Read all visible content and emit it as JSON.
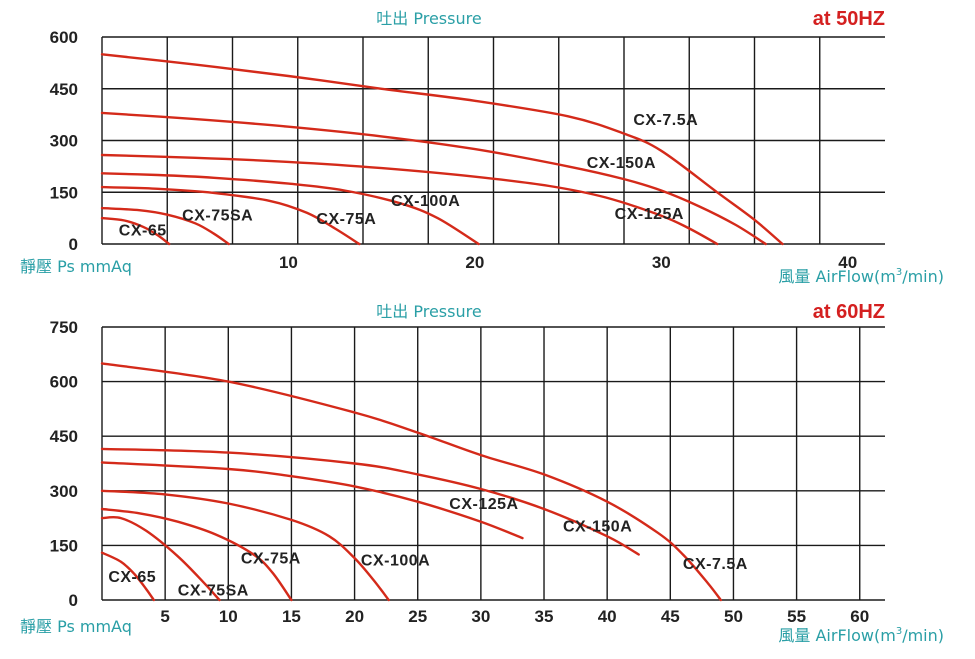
{
  "chart_data": [
    {
      "type": "line",
      "title": "吐出 Pressure",
      "frequency": "at 50HZ",
      "ylabel": "靜壓 Ps mmAq",
      "xlabel_main": "風量 AirFlow(m",
      "xlabel_sup": "3",
      "xlabel_tail": "/min)",
      "xlim": [
        0,
        42
      ],
      "ylim": [
        0,
        600
      ],
      "y_ticks": [
        0,
        150,
        300,
        450,
        600
      ],
      "x_ticks": [
        10,
        20,
        30,
        40
      ],
      "x_grid": [
        3.5,
        7,
        10.5,
        14,
        17.5,
        21,
        24.5,
        28,
        31.5,
        35,
        38.5
      ],
      "grid": true,
      "color": "#d42a1a",
      "series": [
        {
          "name": "CX-7.5A",
          "x": [
            0,
            5,
            10,
            15,
            20,
            25,
            28,
            30,
            33,
            35,
            36.5
          ],
          "y": [
            550,
            520,
            487,
            450,
            415,
            370,
            320,
            270,
            150,
            70,
            0
          ]
        },
        {
          "name": "CX-150A",
          "x": [
            0,
            5,
            10,
            15,
            20,
            25,
            28,
            30,
            32,
            34,
            35.6
          ],
          "y": [
            380,
            362,
            340,
            312,
            275,
            225,
            188,
            155,
            110,
            55,
            0
          ]
        },
        {
          "name": "CX-125A",
          "x": [
            0,
            5,
            10,
            15,
            20,
            24,
            27,
            30,
            31.5,
            33
          ],
          "y": [
            258,
            250,
            238,
            220,
            195,
            168,
            135,
            82,
            45,
            0
          ]
        },
        {
          "name": "CX-100A",
          "x": [
            0,
            3,
            6,
            10,
            13,
            16,
            18,
            20.2
          ],
          "y": [
            205,
            200,
            192,
            175,
            155,
            118,
            75,
            0
          ]
        },
        {
          "name": "CX-75A",
          "x": [
            0,
            3,
            6,
            9,
            11,
            12.5,
            13.8
          ],
          "y": [
            165,
            160,
            148,
            125,
            90,
            45,
            0
          ]
        },
        {
          "name": "CX-75SA",
          "x": [
            0,
            2,
            3.5,
            5,
            6,
            6.8
          ],
          "y": [
            104,
            98,
            85,
            60,
            30,
            0
          ]
        },
        {
          "name": "CX-65",
          "x": [
            0,
            1.2,
            2.2,
            3,
            3.6
          ],
          "y": [
            75,
            68,
            50,
            25,
            0
          ]
        }
      ],
      "labels": [
        {
          "text": "CX-7.5A",
          "x": 28.5,
          "y": 345
        },
        {
          "text": "CX-150A",
          "x": 26,
          "y": 220
        },
        {
          "text": "CX-125A",
          "x": 27.5,
          "y": 72
        },
        {
          "text": "CX-100A",
          "x": 15.5,
          "y": 110
        },
        {
          "text": "CX-75A",
          "x": 11.5,
          "y": 58
        },
        {
          "text": "CX-75SA",
          "x": 4.3,
          "y": 68
        },
        {
          "text": "CX-65",
          "x": 0.9,
          "y": 25
        }
      ]
    },
    {
      "type": "line",
      "title": "吐出 Pressure",
      "frequency": "at 60HZ",
      "ylabel": "靜壓 Ps mmAq",
      "xlabel_main": "風量 AirFlow(m",
      "xlabel_sup": "3",
      "xlabel_tail": "/min)",
      "xlim": [
        0,
        62
      ],
      "ylim": [
        0,
        750
      ],
      "y_ticks": [
        0,
        150,
        300,
        450,
        600,
        750
      ],
      "x_ticks": [
        5,
        10,
        15,
        20,
        25,
        30,
        35,
        40,
        45,
        50,
        55,
        60
      ],
      "x_grid": [
        5,
        10,
        15,
        20,
        25,
        30,
        35,
        40,
        45,
        50,
        55,
        60
      ],
      "grid": true,
      "color": "#d42a1a",
      "series": [
        {
          "name": "CX-7.5A",
          "x": [
            0,
            10,
            20,
            25,
            30,
            35,
            40,
            44,
            46,
            48,
            49
          ],
          "y": [
            650,
            600,
            515,
            460,
            398,
            345,
            270,
            185,
            125,
            45,
            0
          ]
        },
        {
          "name": "CX-150A",
          "x": [
            0,
            10,
            20,
            25,
            30,
            35,
            40,
            42.5
          ],
          "y": [
            415,
            405,
            375,
            345,
            305,
            250,
            175,
            125
          ]
        },
        {
          "name": "CX-125A",
          "x": [
            0,
            10,
            15,
            20,
            25,
            30,
            33.3
          ],
          "y": [
            378,
            360,
            340,
            312,
            270,
            215,
            170
          ]
        },
        {
          "name": "CX-100A",
          "x": [
            0,
            5,
            10,
            15,
            18,
            20,
            21.5,
            22.7
          ],
          "y": [
            300,
            290,
            265,
            220,
            175,
            115,
            55,
            0
          ]
        },
        {
          "name": "CX-75A",
          "x": [
            0,
            3,
            6,
            9,
            12,
            13.5,
            15
          ],
          "y": [
            250,
            238,
            215,
            180,
            125,
            75,
            0
          ]
        },
        {
          "name": "CX-75SA",
          "x": [
            0,
            1.5,
            3.5,
            6,
            8,
            9.3
          ],
          "y": [
            225,
            225,
            190,
            120,
            50,
            0
          ]
        },
        {
          "name": "CX-65",
          "x": [
            0,
            1.5,
            2.6,
            3.5,
            4.1
          ],
          "y": [
            130,
            105,
            70,
            30,
            0
          ]
        }
      ],
      "labels": [
        {
          "text": "CX-125A",
          "x": 27.5,
          "y": 250
        },
        {
          "text": "CX-150A",
          "x": 36.5,
          "y": 188
        },
        {
          "text": "CX-7.5A",
          "x": 46,
          "y": 85
        },
        {
          "text": "CX-100A",
          "x": 20.5,
          "y": 95
        },
        {
          "text": "CX-75A",
          "x": 11,
          "y": 100
        },
        {
          "text": "CX-75SA",
          "x": 6,
          "y": 12
        },
        {
          "text": "CX-65",
          "x": 0.5,
          "y": 50
        }
      ]
    }
  ]
}
